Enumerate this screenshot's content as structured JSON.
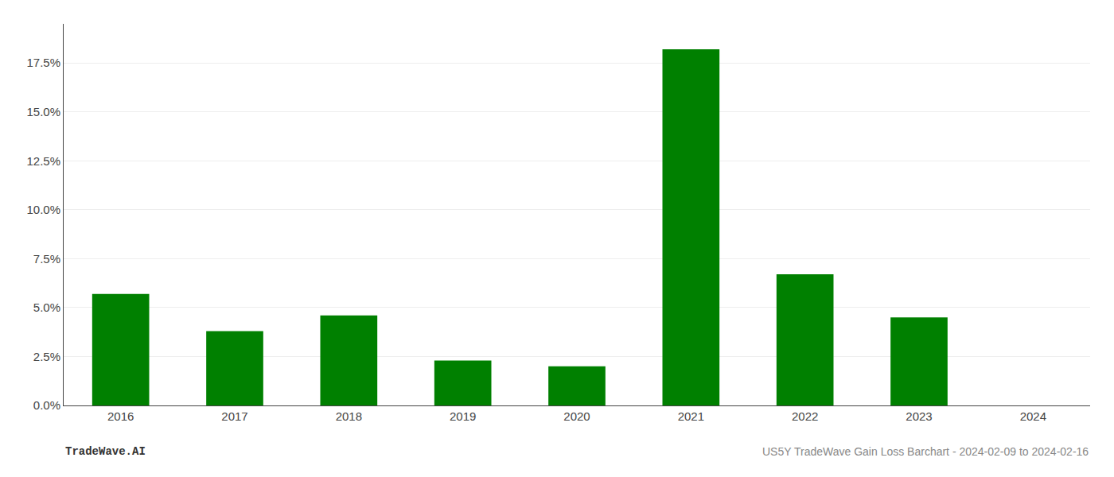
{
  "chart_data": {
    "type": "bar",
    "categories": [
      "2016",
      "2017",
      "2018",
      "2019",
      "2020",
      "2021",
      "2022",
      "2023",
      "2024"
    ],
    "values": [
      0.057,
      0.038,
      0.046,
      0.023,
      0.02,
      0.182,
      0.067,
      0.045,
      0.0
    ],
    "color": "#008000",
    "ylim": [
      0,
      0.195
    ],
    "yticks": [
      {
        "value": 0.0,
        "label": "0.0%"
      },
      {
        "value": 0.025,
        "label": "2.5%"
      },
      {
        "value": 0.05,
        "label": "5.0%"
      },
      {
        "value": 0.075,
        "label": "7.5%"
      },
      {
        "value": 0.1,
        "label": "10.0%"
      },
      {
        "value": 0.125,
        "label": "12.5%"
      },
      {
        "value": 0.15,
        "label": "15.0%"
      },
      {
        "value": 0.175,
        "label": "17.5%"
      }
    ],
    "grid": true,
    "annotations": [
      "TradeWave.AI",
      "US5Y TradeWave Gain Loss Barchart - 2024-02-09 to 2024-02-16"
    ]
  }
}
